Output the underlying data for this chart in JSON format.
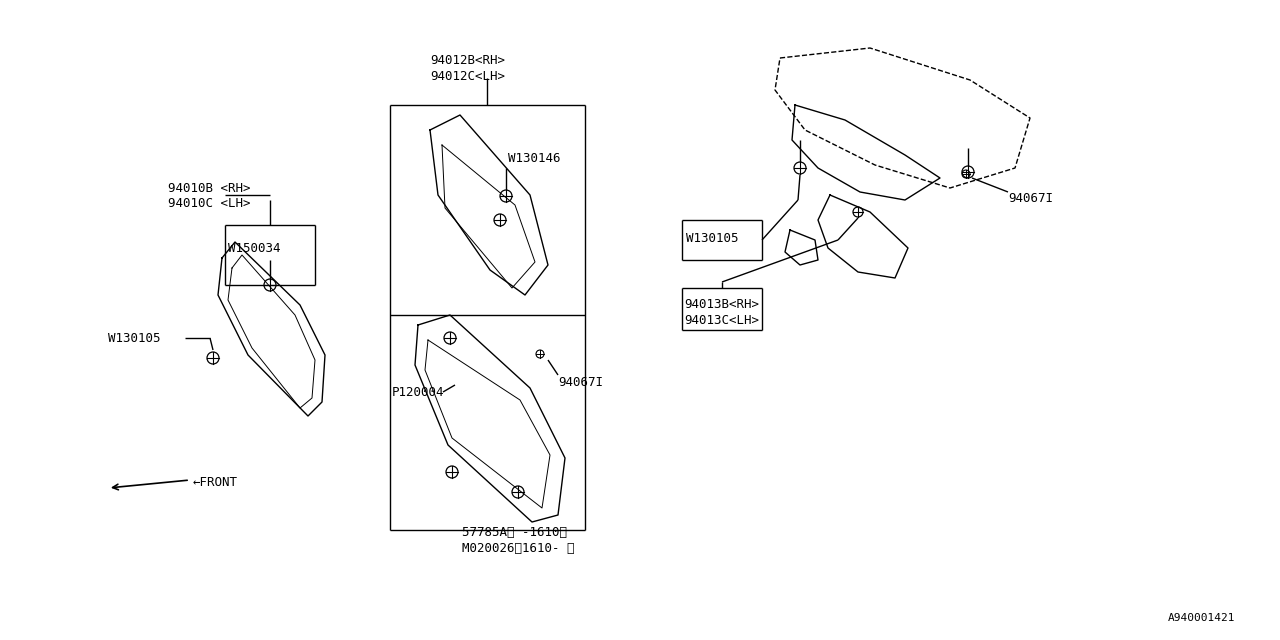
{
  "bg_color": "#ffffff",
  "line_color": "#000000",
  "fig_width": 12.8,
  "fig_height": 6.4,
  "diagram_id": "A940001421",
  "labels": {
    "part_94012B_RH": "94012B<RH>",
    "part_94012C_LH": "94012C<LH>",
    "part_94010B_RH": "94010B <RH>",
    "part_94010C_LH": "94010C <LH>",
    "part_W150034": "W150034",
    "part_W130105_left": "W130105",
    "part_W130146": "W130146",
    "part_94067I_center": "94067I",
    "part_P120004": "P120004",
    "part_57785A": "57785A（ -1610）",
    "part_M020026": "M020026（1610- ）",
    "part_W130105_right": "W130105",
    "part_94013B_RH": "94013B<RH>",
    "part_94013C_LH": "94013C<LH>",
    "part_94067I_right": "94067I",
    "arrow_front": "←FRONT"
  },
  "font_size": 9,
  "small_font": 8,
  "title_font": 11
}
